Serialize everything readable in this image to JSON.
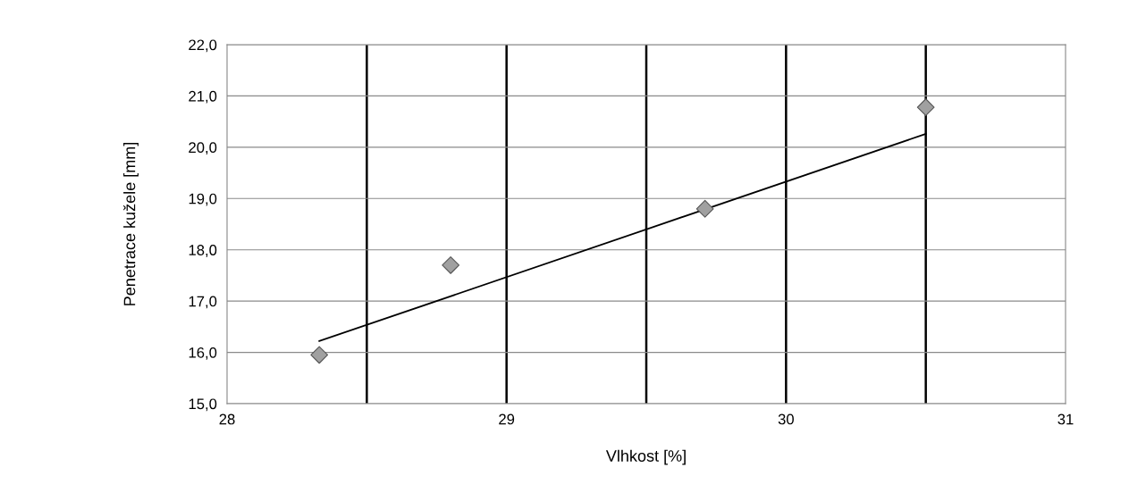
{
  "chart_data": {
    "type": "scatter",
    "xlabel": "Vlhkost [%]",
    "ylabel": "Penetrace kužele [mm]",
    "xlim": [
      28,
      31
    ],
    "ylim": [
      15,
      22
    ],
    "xticks": [
      28,
      {
        "value": 28.5,
        "label": null
      },
      29,
      {
        "value": 29.5,
        "label": null
      },
      30,
      {
        "value": 30.5,
        "label": null
      },
      31
    ],
    "yticks": [
      {
        "value": 15,
        "label": "15,0"
      },
      {
        "value": 16,
        "label": "16,0"
      },
      {
        "value": 17,
        "label": "17,0"
      },
      {
        "value": 18,
        "label": "18,0"
      },
      {
        "value": 19,
        "label": "19,0"
      },
      {
        "value": 20,
        "label": "20,0"
      },
      {
        "value": 21,
        "label": "21,0"
      },
      {
        "value": 22,
        "label": "22,0"
      }
    ],
    "grid": true,
    "legend": false,
    "series": [
      {
        "color": "#a0a0a0",
        "marker": "diamond",
        "x": [
          28.33,
          28.8,
          29.71,
          30.5
        ],
        "values": [
          15.95,
          17.7,
          18.8,
          20.78
        ]
      },
      {
        "type": "line",
        "marker": "none",
        "color": "#000000",
        "x": [
          28.33,
          30.5
        ],
        "values": [
          16.22,
          20.26
        ]
      }
    ]
  }
}
